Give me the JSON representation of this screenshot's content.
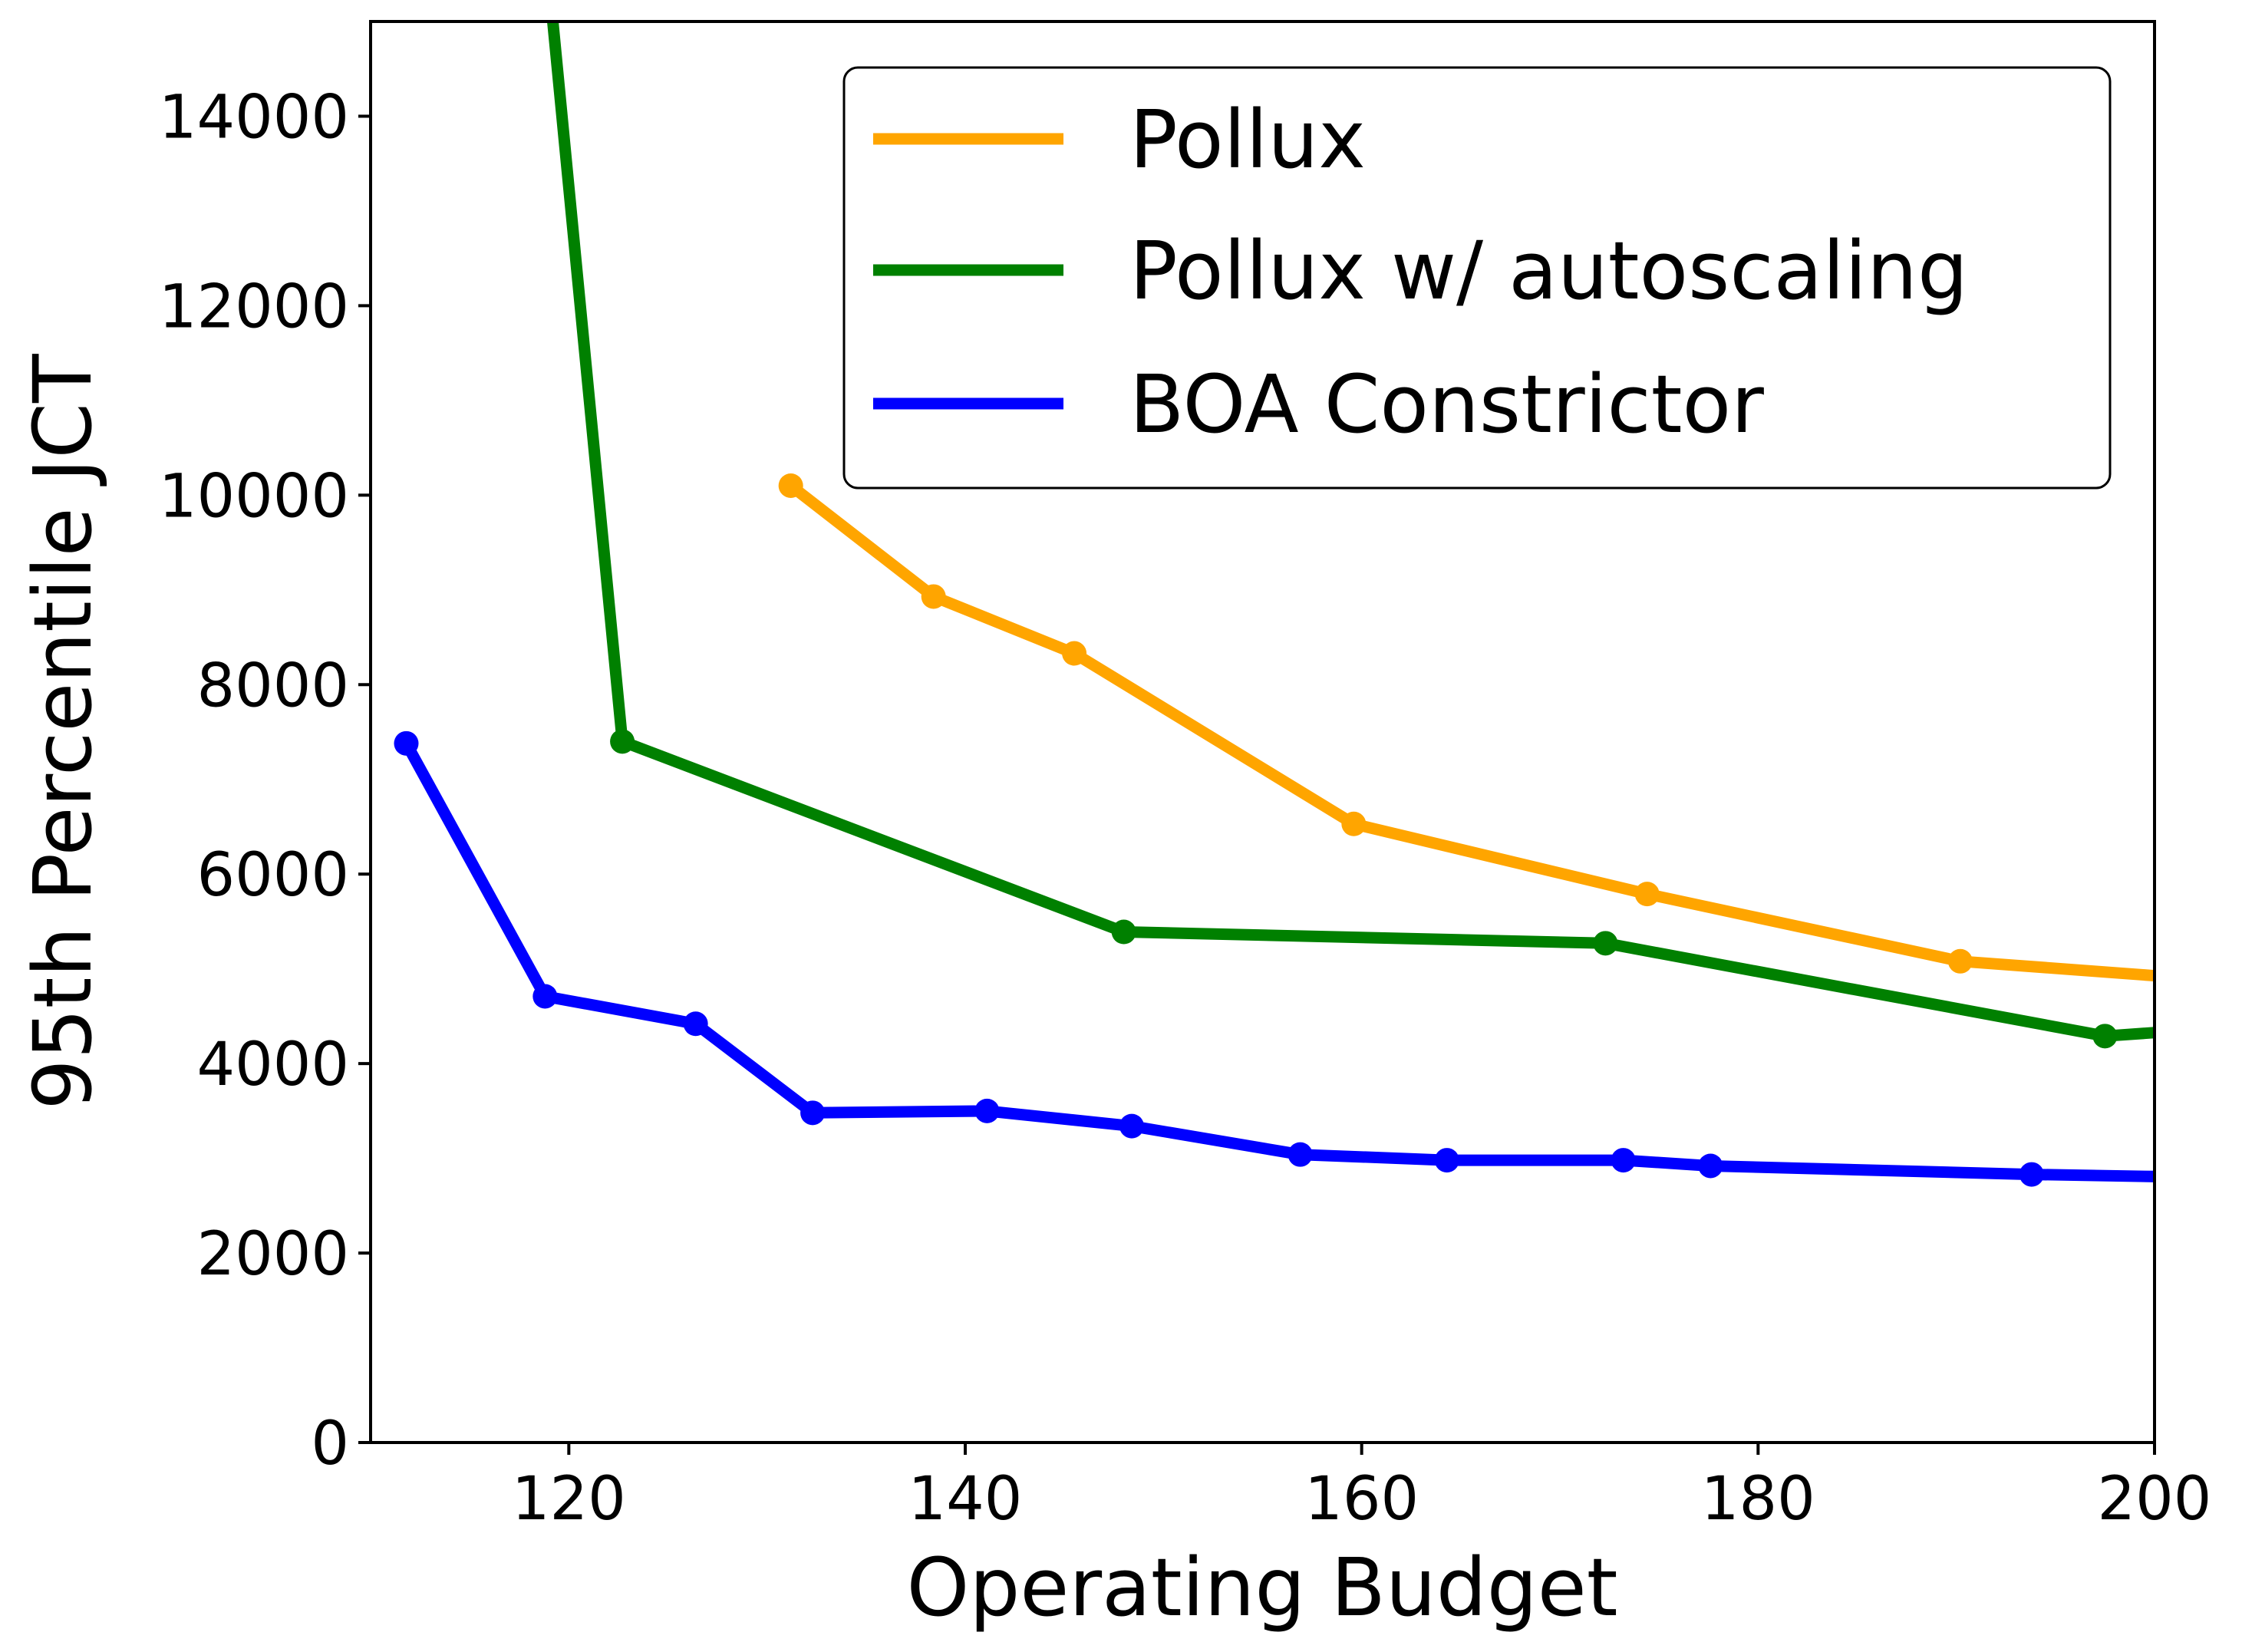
{
  "chart_data": {
    "type": "line",
    "title": "",
    "xlabel": "Operating Budget",
    "ylabel": "95th Percentile JCT",
    "xlim": [
      110,
      200
    ],
    "ylim": [
      0,
      15000
    ],
    "xticks": [
      120,
      140,
      160,
      180,
      200
    ],
    "yticks": [
      0,
      2000,
      4000,
      6000,
      8000,
      10000,
      12000,
      14000
    ],
    "grid": false,
    "legend_position": "top-right",
    "series": [
      {
        "name": "Pollux",
        "color": "#FFA500",
        "points": [
          [
            131.2,
            10100
          ],
          [
            138.4,
            8930
          ],
          [
            145.5,
            8330
          ],
          [
            159.6,
            6530
          ],
          [
            174.4,
            5790
          ],
          [
            190.2,
            5080
          ],
          [
            205,
            4850
          ]
        ]
      },
      {
        "name": "Pollux w/ autoscaling",
        "color": "#008000",
        "points": [
          [
            118.5,
            16500
          ],
          [
            122.7,
            7400
          ],
          [
            148.0,
            5390
          ],
          [
            172.3,
            5270
          ],
          [
            197.5,
            4290
          ],
          [
            205,
            4400
          ]
        ]
      },
      {
        "name": "BOA Constrictor",
        "color": "#0000FF",
        "points": [
          [
            111.8,
            7380
          ],
          [
            118.8,
            4710
          ],
          [
            126.4,
            4420
          ],
          [
            132.3,
            3480
          ],
          [
            141.1,
            3500
          ],
          [
            148.4,
            3340
          ],
          [
            156.9,
            3040
          ],
          [
            164.3,
            2980
          ],
          [
            173.2,
            2980
          ],
          [
            177.6,
            2920
          ],
          [
            193.8,
            2830
          ],
          [
            205,
            2790
          ]
        ]
      }
    ]
  }
}
